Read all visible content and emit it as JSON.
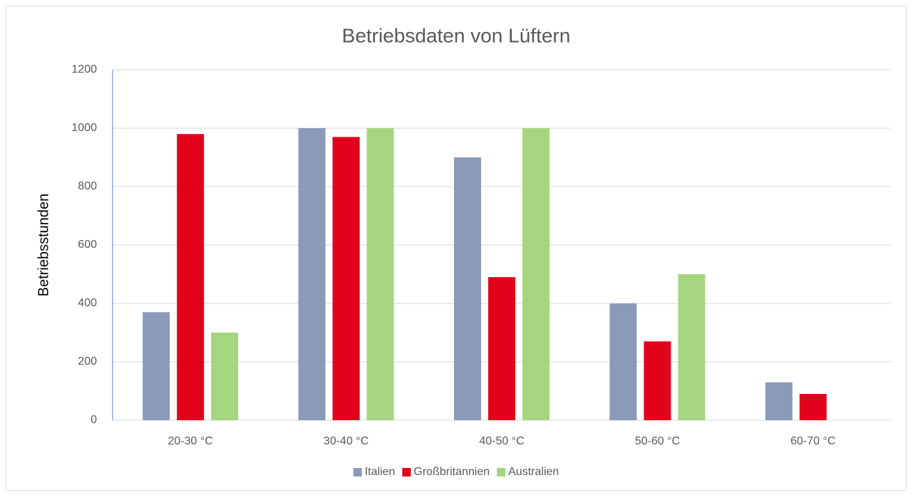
{
  "chart_data": {
    "type": "bar",
    "title": "Betriebsdaten von Lüftern",
    "y_label": "Betriebsstunden",
    "categories": [
      "20-30 °C",
      "30-40 °C",
      "40-50 °C",
      "50-60 °C",
      "60-70 °C"
    ],
    "series": [
      {
        "name": "Italien",
        "color": "#8a9ab8",
        "values": [
          370,
          1000,
          900,
          400,
          130
        ]
      },
      {
        "name": "Großbritannien",
        "color": "#e3001b",
        "values": [
          980,
          970,
          490,
          270,
          90
        ]
      },
      {
        "name": "Australien",
        "color": "#a6d57f",
        "values": [
          300,
          1000,
          1000,
          500,
          0
        ]
      }
    ],
    "ylim": [
      0,
      1200
    ],
    "yticks": [
      0,
      200,
      400,
      600,
      800,
      1000,
      1200
    ],
    "grid": true,
    "legend": "bottom"
  }
}
